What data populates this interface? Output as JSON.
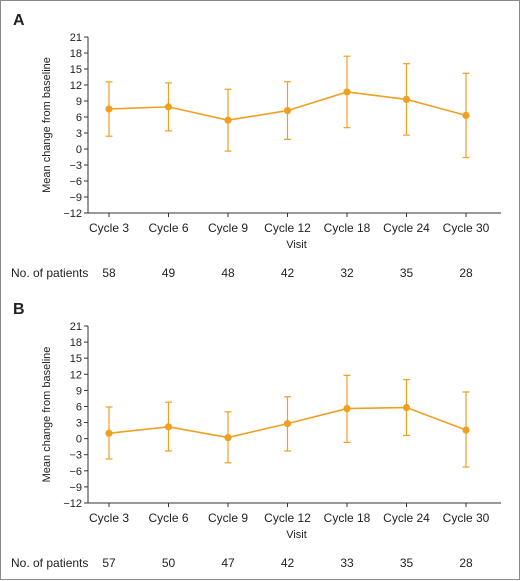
{
  "chart_data": [
    {
      "type": "line",
      "panel_label": "A",
      "categories": [
        "Cycle 3",
        "Cycle 6",
        "Cycle 9",
        "Cycle 12",
        "Cycle 18",
        "Cycle 24",
        "Cycle 30"
      ],
      "series": [
        {
          "values": [
            7.5,
            7.9,
            5.4,
            7.2,
            10.7,
            9.3,
            6.3
          ],
          "error_upper": [
            12.6,
            12.4,
            11.2,
            12.6,
            17.4,
            16.0,
            14.2
          ],
          "error_lower": [
            2.4,
            3.4,
            -0.4,
            1.8,
            4.0,
            2.6,
            -1.6
          ]
        }
      ],
      "xlabel": "Visit",
      "ylabel": "Mean change from baseline",
      "ylim": [
        -12,
        21
      ],
      "yticks": [
        -12,
        -9,
        -6,
        -3,
        0,
        3,
        6,
        9,
        12,
        15,
        18,
        21
      ],
      "ytick_labels": [
        "−12",
        "−9",
        "−6",
        "−3",
        "0",
        "3",
        "6",
        "9",
        "12",
        "15",
        "18",
        "21"
      ],
      "n_label": "No. of patients",
      "n_values": [
        "58",
        "49",
        "48",
        "42",
        "32",
        "35",
        "28"
      ],
      "color": "#f0a020",
      "grid": false
    },
    {
      "type": "line",
      "panel_label": "B",
      "categories": [
        "Cycle 3",
        "Cycle 6",
        "Cycle 9",
        "Cycle 12",
        "Cycle 18",
        "Cycle 24",
        "Cycle 30"
      ],
      "series": [
        {
          "values": [
            1.0,
            2.2,
            0.2,
            2.8,
            5.6,
            5.8,
            1.6
          ],
          "error_upper": [
            5.9,
            6.8,
            5.0,
            7.8,
            11.8,
            11.0,
            8.7
          ],
          "error_lower": [
            -3.8,
            -2.3,
            -4.5,
            -2.3,
            -0.7,
            0.6,
            -5.3
          ]
        }
      ],
      "xlabel": "Visit",
      "ylabel": "Mean change from baseline",
      "ylim": [
        -12,
        21
      ],
      "yticks": [
        -12,
        -9,
        -6,
        -3,
        0,
        3,
        6,
        9,
        12,
        15,
        18,
        21
      ],
      "ytick_labels": [
        "−12",
        "−9",
        "−6",
        "−3",
        "0",
        "3",
        "6",
        "9",
        "12",
        "15",
        "18",
        "21"
      ],
      "n_label": "No. of patients",
      "n_values": [
        "57",
        "50",
        "47",
        "42",
        "33",
        "35",
        "28"
      ],
      "color": "#f0a020",
      "grid": false
    }
  ]
}
